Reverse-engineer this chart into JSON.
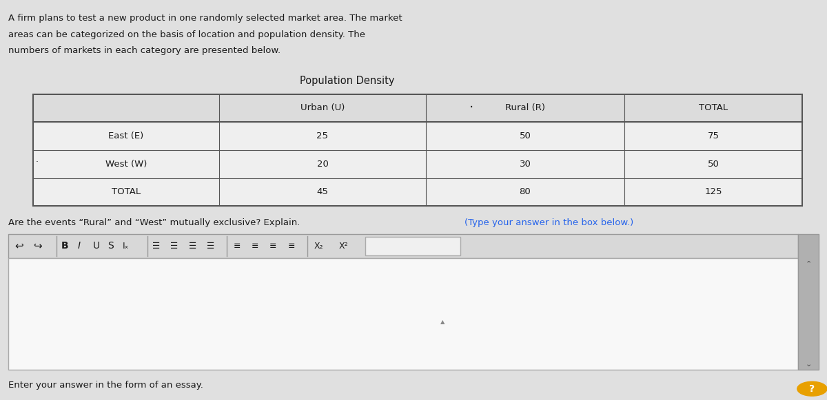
{
  "bg_color": "#e0e0e0",
  "intro_text_line1": "A firm plans to test a new product in one randomly selected market area. The market",
  "intro_text_line2": "areas can be categorized on the basis of location and population density. The",
  "intro_text_line3": "numbers of markets in each category are presented below.",
  "table_title": "Population Density",
  "table_headers": [
    "",
    "Urban (U)",
    "Rural (R)",
    "TOTAL"
  ],
  "table_rows": [
    [
      "East (E)",
      "25",
      "50",
      "75"
    ],
    [
      "West (W)",
      "20",
      "30",
      "50"
    ],
    [
      "TOTAL",
      "45",
      "80",
      "125"
    ]
  ],
  "question_text_normal": "Are the events “Rural” and “West” mutually exclusive? Explain. ",
  "question_text_blue": "(Type your answer in the box below.)",
  "footer_text": "Enter your answer in the form of an essay.",
  "border_color": "#555555",
  "text_color": "#1a1a1a",
  "blue_text_color": "#2563eb",
  "editor_bg": "#f8f8f8",
  "toolbar_bg": "#d8d8d8",
  "scrollbar_color": "#b0b0b0"
}
